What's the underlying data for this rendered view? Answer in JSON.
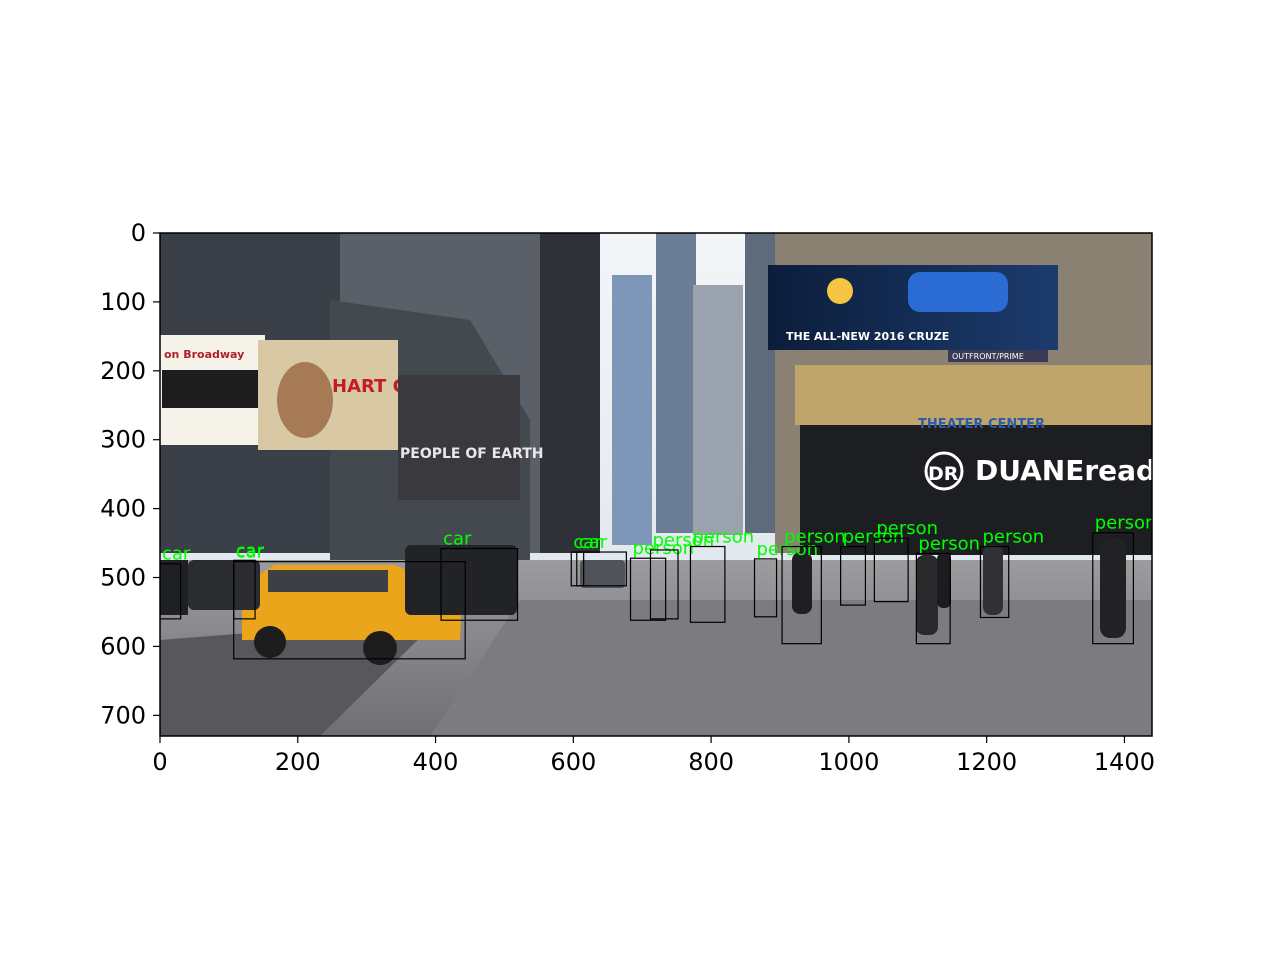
{
  "image": {
    "description_free": true,
    "width": 1440,
    "height": 730
  },
  "axes": {
    "x_ticks": [
      0,
      200,
      400,
      600,
      800,
      1000,
      1200,
      1400
    ],
    "y_ticks": [
      0,
      100,
      200,
      300,
      400,
      500,
      600,
      700
    ],
    "xlim": [
      0,
      1440
    ],
    "ylim": [
      730,
      0
    ]
  },
  "signage": {
    "on_broadway": "on Broadway",
    "hart_city": "HART CITY",
    "cruze": "THE ALL-NEW 2016 CRUZE",
    "theater_center": "THEATER CENTER",
    "duane_reade": "DUANEreade",
    "dr": "DR",
    "outfront": "OUTFRONT/PRIME",
    "people_of_earth": "PEOPLE OF EARTH"
  },
  "colors": {
    "detection_box": "#000000",
    "detection_text": "#00ff00"
  },
  "detections": [
    {
      "label": "car",
      "x1": 0,
      "y1": 480,
      "x2": 30,
      "y2": 560
    },
    {
      "label": "car",
      "x1": 107,
      "y1": 475,
      "x2": 138,
      "y2": 560
    },
    {
      "label": "car",
      "x1": 107,
      "y1": 477,
      "x2": 443,
      "y2": 618
    },
    {
      "label": "car",
      "x1": 408,
      "y1": 458,
      "x2": 519,
      "y2": 562
    },
    {
      "label": "car",
      "x1": 597,
      "y1": 463,
      "x2": 615,
      "y2": 512
    },
    {
      "label": "car",
      "x1": 605,
      "y1": 463,
      "x2": 677,
      "y2": 512
    },
    {
      "label": "person",
      "x1": 683,
      "y1": 472,
      "x2": 734,
      "y2": 562
    },
    {
      "label": "person",
      "x1": 712,
      "y1": 460,
      "x2": 752,
      "y2": 560
    },
    {
      "label": "person",
      "x1": 770,
      "y1": 455,
      "x2": 820,
      "y2": 565
    },
    {
      "label": "person",
      "x1": 863,
      "y1": 473,
      "x2": 895,
      "y2": 557
    },
    {
      "label": "person",
      "x1": 903,
      "y1": 455,
      "x2": 960,
      "y2": 596
    },
    {
      "label": "person",
      "x1": 988,
      "y1": 455,
      "x2": 1024,
      "y2": 540
    },
    {
      "label": "person",
      "x1": 1037,
      "y1": 443,
      "x2": 1086,
      "y2": 535
    },
    {
      "label": "person",
      "x1": 1098,
      "y1": 465,
      "x2": 1147,
      "y2": 596
    },
    {
      "label": "person",
      "x1": 1191,
      "y1": 455,
      "x2": 1232,
      "y2": 558
    },
    {
      "label": "person",
      "x1": 1354,
      "y1": 435,
      "x2": 1413,
      "y2": 596
    }
  ]
}
